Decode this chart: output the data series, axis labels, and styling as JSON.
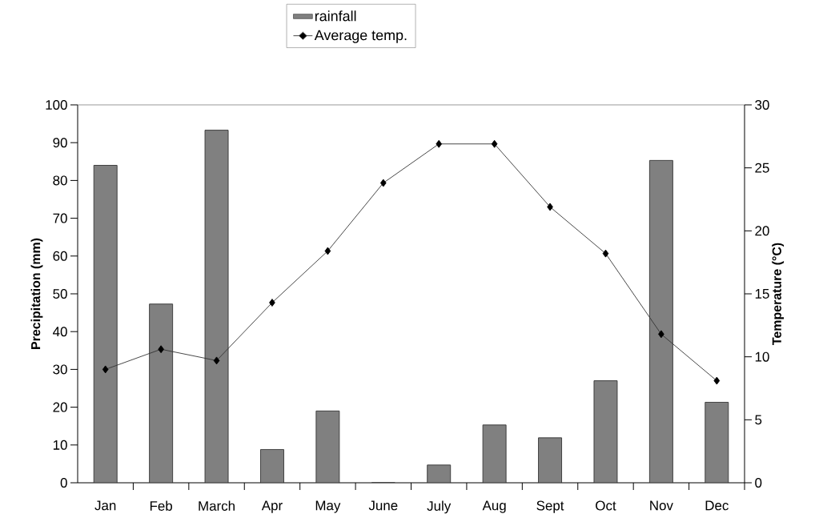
{
  "chart_data": {
    "type": "bar",
    "categories": [
      "Jan",
      "Feb",
      "March",
      "Apr",
      "May",
      "June",
      "July",
      "Aug",
      "Sept",
      "Oct",
      "Nov",
      "Dec"
    ],
    "series": [
      {
        "name": "rainfall",
        "color": "#808080",
        "values": [
          84,
          47.3,
          93.3,
          8.8,
          19,
          0,
          4.7,
          15.3,
          11.9,
          27,
          85.3,
          21.3
        ]
      },
      {
        "name": "Average temp.",
        "type": "line",
        "axis": "y2",
        "color": "#333333",
        "marker": "diamond",
        "line_style": "solid",
        "values": [
          9,
          10.6,
          9.7,
          14.3,
          18.4,
          23.8,
          26.9,
          26.9,
          21.9,
          18.2,
          11.8,
          8.1
        ]
      }
    ],
    "ylabel": "Precipitation (mm)",
    "y2label": "Temperature (°C)",
    "ylim": [
      0,
      100
    ],
    "yticks": [
      0,
      10,
      20,
      30,
      40,
      50,
      60,
      70,
      80,
      90,
      100
    ],
    "y2lim": [
      0,
      30
    ],
    "y2ticks": [
      0,
      5,
      10,
      15,
      20,
      25,
      30
    ],
    "grid": false,
    "legend": "top"
  }
}
